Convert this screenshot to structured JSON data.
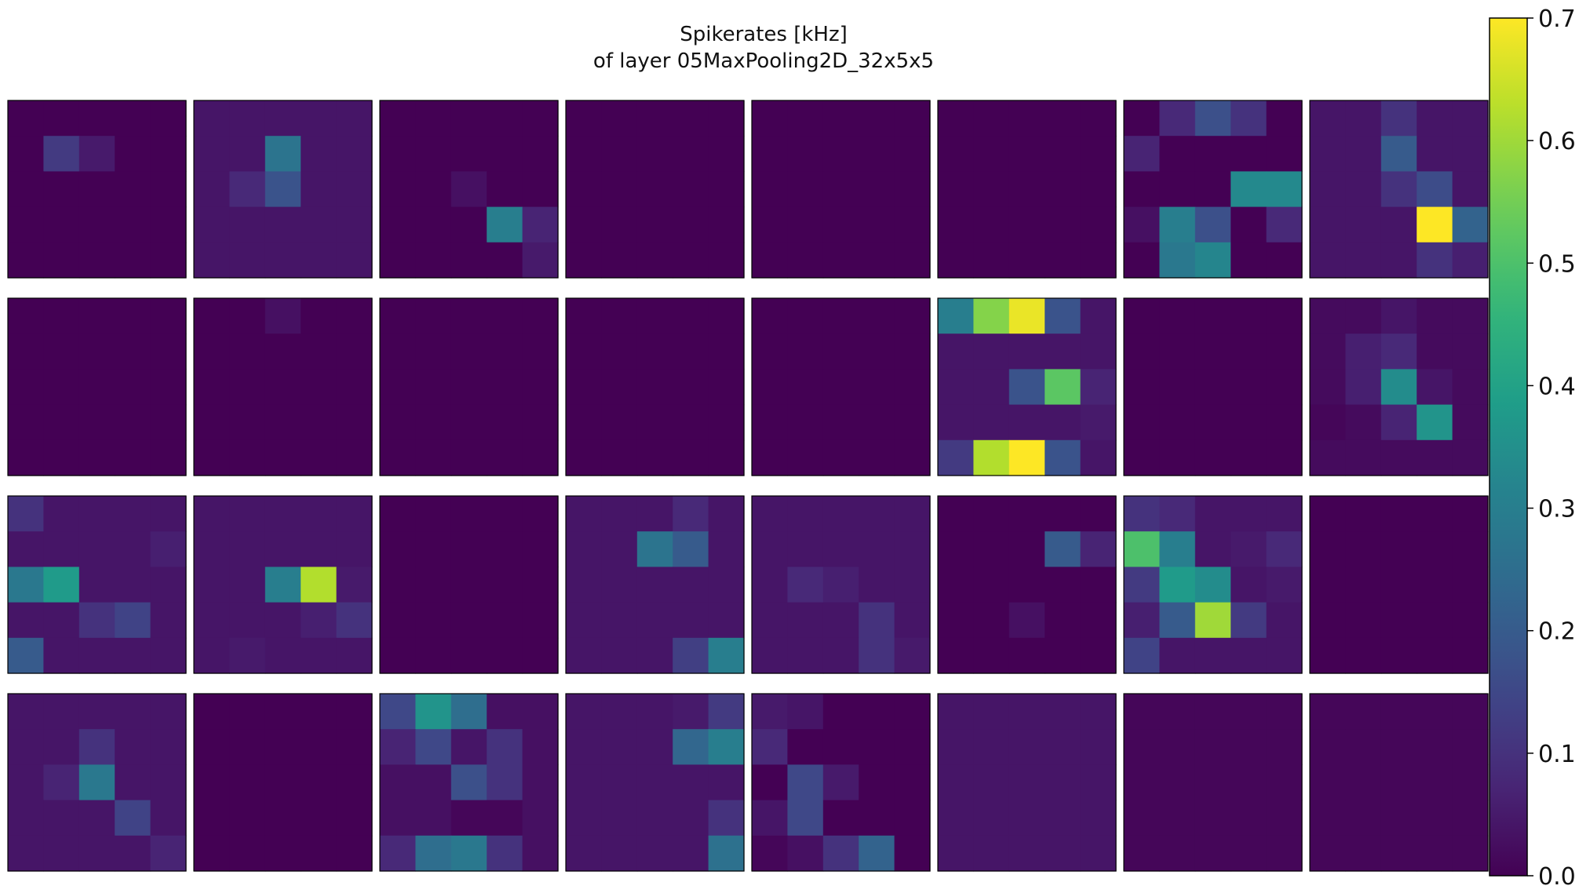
{
  "chart_data": {
    "type": "heatmap",
    "title": [
      "Spikerates [kHz]",
      "of layer 05MaxPooling2D_32x5x5"
    ],
    "grid": false,
    "colormap": "viridis",
    "panels": [
      {
        "values": [
          [
            0,
            0,
            0,
            0,
            0
          ],
          [
            0,
            0.12,
            0.05,
            0,
            0
          ],
          [
            0,
            0,
            0,
            0,
            0
          ],
          [
            0,
            0,
            0,
            0,
            0
          ],
          [
            0,
            0,
            0,
            0,
            0
          ]
        ]
      },
      {
        "values": [
          [
            0.04,
            0.04,
            0.04,
            0.04,
            0.04
          ],
          [
            0.04,
            0.04,
            0.27,
            0.04,
            0.04
          ],
          [
            0.04,
            0.08,
            0.18,
            0.04,
            0.04
          ],
          [
            0.04,
            0.04,
            0.04,
            0.04,
            0.04
          ],
          [
            0.04,
            0.04,
            0.04,
            0.04,
            0.04
          ]
        ]
      },
      {
        "values": [
          [
            0,
            0,
            0,
            0,
            0
          ],
          [
            0,
            0,
            0,
            0,
            0
          ],
          [
            0,
            0,
            0.03,
            0,
            0
          ],
          [
            0,
            0,
            0,
            0.3,
            0.07
          ],
          [
            0,
            0,
            0,
            0,
            0.05
          ]
        ]
      },
      {
        "values": [
          [
            0,
            0,
            0,
            0,
            0
          ],
          [
            0,
            0,
            0,
            0,
            0
          ],
          [
            0,
            0,
            0,
            0,
            0
          ],
          [
            0,
            0,
            0,
            0,
            0
          ],
          [
            0,
            0,
            0,
            0,
            0
          ]
        ]
      },
      {
        "values": [
          [
            0,
            0,
            0,
            0,
            0
          ],
          [
            0,
            0,
            0,
            0,
            0
          ],
          [
            0,
            0,
            0,
            0,
            0
          ],
          [
            0,
            0,
            0,
            0,
            0
          ],
          [
            0,
            0,
            0,
            0,
            0
          ]
        ]
      },
      {
        "values": [
          [
            0,
            0,
            0,
            0,
            0
          ],
          [
            0,
            0,
            0,
            0,
            0
          ],
          [
            0,
            0,
            0,
            0,
            0
          ],
          [
            0,
            0,
            0,
            0,
            0
          ],
          [
            0,
            0,
            0,
            0,
            0
          ]
        ]
      },
      {
        "values": [
          [
            0,
            0.08,
            0.17,
            0.1,
            0
          ],
          [
            0.07,
            0,
            0,
            0,
            0
          ],
          [
            0,
            0,
            0,
            0.33,
            0.33
          ],
          [
            0.03,
            0.3,
            0.17,
            0,
            0.08
          ],
          [
            0,
            0.28,
            0.32,
            0,
            0
          ]
        ]
      },
      {
        "values": [
          [
            0.04,
            0.04,
            0.1,
            0.04,
            0.04
          ],
          [
            0.04,
            0.04,
            0.2,
            0.04,
            0.04
          ],
          [
            0.04,
            0.04,
            0.1,
            0.16,
            0.04
          ],
          [
            0.04,
            0.04,
            0.04,
            0.7,
            0.22
          ],
          [
            0.04,
            0.04,
            0.04,
            0.1,
            0.06
          ]
        ]
      },
      {
        "values": [
          [
            0,
            0,
            0,
            0,
            0
          ],
          [
            0,
            0,
            0,
            0,
            0
          ],
          [
            0,
            0,
            0,
            0,
            0
          ],
          [
            0,
            0,
            0,
            0,
            0
          ],
          [
            0,
            0,
            0,
            0,
            0
          ]
        ]
      },
      {
        "values": [
          [
            0,
            0,
            0.03,
            0,
            0
          ],
          [
            0,
            0,
            0,
            0,
            0
          ],
          [
            0,
            0,
            0,
            0,
            0
          ],
          [
            0,
            0,
            0,
            0,
            0
          ],
          [
            0,
            0,
            0,
            0,
            0
          ]
        ]
      },
      {
        "values": [
          [
            0,
            0,
            0,
            0,
            0
          ],
          [
            0,
            0,
            0,
            0,
            0
          ],
          [
            0,
            0,
            0,
            0,
            0
          ],
          [
            0,
            0,
            0,
            0,
            0
          ],
          [
            0,
            0,
            0,
            0,
            0
          ]
        ]
      },
      {
        "values": [
          [
            0,
            0,
            0,
            0,
            0
          ],
          [
            0,
            0,
            0,
            0,
            0
          ],
          [
            0,
            0,
            0,
            0,
            0
          ],
          [
            0,
            0,
            0,
            0,
            0
          ],
          [
            0,
            0,
            0,
            0,
            0
          ]
        ]
      },
      {
        "values": [
          [
            0,
            0,
            0,
            0,
            0
          ],
          [
            0,
            0,
            0,
            0,
            0
          ],
          [
            0,
            0,
            0,
            0,
            0
          ],
          [
            0,
            0,
            0,
            0,
            0
          ],
          [
            0,
            0,
            0,
            0,
            0
          ]
        ]
      },
      {
        "values": [
          [
            0.3,
            0.57,
            0.68,
            0.18,
            0.04
          ],
          [
            0.04,
            0.04,
            0.04,
            0.04,
            0.04
          ],
          [
            0.04,
            0.04,
            0.18,
            0.52,
            0.07
          ],
          [
            0.04,
            0.04,
            0.04,
            0.04,
            0.05
          ],
          [
            0.12,
            0.62,
            0.7,
            0.18,
            0.04
          ]
        ]
      },
      {
        "values": [
          [
            0,
            0,
            0,
            0,
            0
          ],
          [
            0,
            0,
            0,
            0,
            0
          ],
          [
            0,
            0,
            0,
            0,
            0
          ],
          [
            0,
            0,
            0,
            0,
            0
          ],
          [
            0,
            0,
            0,
            0,
            0
          ]
        ]
      },
      {
        "values": [
          [
            0.02,
            0.02,
            0.04,
            0.02,
            0.02
          ],
          [
            0.02,
            0.06,
            0.08,
            0.02,
            0.02
          ],
          [
            0.02,
            0.06,
            0.34,
            0.04,
            0.02
          ],
          [
            0.01,
            0.02,
            0.07,
            0.36,
            0.02
          ],
          [
            0.02,
            0.02,
            0.02,
            0.02,
            0.02
          ]
        ]
      },
      {
        "values": [
          [
            0.1,
            0.04,
            0.04,
            0.04,
            0.04
          ],
          [
            0.04,
            0.04,
            0.04,
            0.04,
            0.06
          ],
          [
            0.28,
            0.38,
            0.04,
            0.04,
            0.04
          ],
          [
            0.04,
            0.04,
            0.1,
            0.14,
            0.04
          ],
          [
            0.2,
            0.04,
            0.04,
            0.04,
            0.04
          ]
        ]
      },
      {
        "values": [
          [
            0.04,
            0.04,
            0.04,
            0.04,
            0.04
          ],
          [
            0.04,
            0.04,
            0.04,
            0.04,
            0.04
          ],
          [
            0.04,
            0.04,
            0.3,
            0.62,
            0.05
          ],
          [
            0.04,
            0.04,
            0.04,
            0.06,
            0.1
          ],
          [
            0.04,
            0.05,
            0.04,
            0.04,
            0.04
          ]
        ]
      },
      {
        "values": [
          [
            0,
            0,
            0,
            0,
            0
          ],
          [
            0,
            0,
            0,
            0,
            0
          ],
          [
            0,
            0,
            0,
            0,
            0
          ],
          [
            0,
            0,
            0,
            0,
            0
          ],
          [
            0,
            0,
            0,
            0,
            0
          ]
        ]
      },
      {
        "values": [
          [
            0.04,
            0.04,
            0.04,
            0.08,
            0.04
          ],
          [
            0.04,
            0.04,
            0.27,
            0.2,
            0.04
          ],
          [
            0.04,
            0.04,
            0.04,
            0.04,
            0.04
          ],
          [
            0.04,
            0.04,
            0.04,
            0.04,
            0.04
          ],
          [
            0.04,
            0.04,
            0.04,
            0.13,
            0.3
          ]
        ]
      },
      {
        "values": [
          [
            0.04,
            0.04,
            0.04,
            0.04,
            0.04
          ],
          [
            0.04,
            0.04,
            0.04,
            0.04,
            0.04
          ],
          [
            0.04,
            0.08,
            0.06,
            0.04,
            0.04
          ],
          [
            0.04,
            0.04,
            0.04,
            0.1,
            0.04
          ],
          [
            0.04,
            0.04,
            0.04,
            0.1,
            0.05
          ]
        ]
      },
      {
        "values": [
          [
            0,
            0,
            0,
            0,
            0
          ],
          [
            0,
            0,
            0,
            0.2,
            0.07
          ],
          [
            0,
            0,
            0,
            0,
            0
          ],
          [
            0,
            0,
            0.03,
            0,
            0
          ],
          [
            0,
            0,
            0,
            0,
            0
          ]
        ]
      },
      {
        "values": [
          [
            0.1,
            0.08,
            0.04,
            0.04,
            0.04
          ],
          [
            0.5,
            0.3,
            0.04,
            0.05,
            0.08
          ],
          [
            0.12,
            0.38,
            0.34,
            0.04,
            0.05
          ],
          [
            0.06,
            0.2,
            0.6,
            0.12,
            0.04
          ],
          [
            0.14,
            0.04,
            0.04,
            0.04,
            0.04
          ]
        ]
      },
      {
        "values": [
          [
            0,
            0,
            0,
            0,
            0
          ],
          [
            0,
            0,
            0,
            0,
            0
          ],
          [
            0,
            0,
            0,
            0,
            0
          ],
          [
            0,
            0,
            0,
            0,
            0
          ],
          [
            0,
            0,
            0,
            0,
            0
          ]
        ]
      },
      {
        "values": [
          [
            0.04,
            0.04,
            0.04,
            0.04,
            0.04
          ],
          [
            0.04,
            0.04,
            0.1,
            0.04,
            0.04
          ],
          [
            0.04,
            0.07,
            0.28,
            0.04,
            0.04
          ],
          [
            0.04,
            0.04,
            0.04,
            0.14,
            0.04
          ],
          [
            0.04,
            0.04,
            0.04,
            0.04,
            0.07
          ]
        ]
      },
      {
        "values": [
          [
            0,
            0,
            0,
            0,
            0
          ],
          [
            0,
            0,
            0,
            0,
            0
          ],
          [
            0,
            0,
            0,
            0,
            0
          ],
          [
            0,
            0,
            0,
            0,
            0
          ],
          [
            0,
            0,
            0,
            0,
            0
          ]
        ]
      },
      {
        "values": [
          [
            0.15,
            0.36,
            0.25,
            0.03,
            0.03
          ],
          [
            0.07,
            0.15,
            0.04,
            0.1,
            0.03
          ],
          [
            0.03,
            0.03,
            0.17,
            0.1,
            0.03
          ],
          [
            0.03,
            0.03,
            0.01,
            0.01,
            0.03
          ],
          [
            0.08,
            0.25,
            0.28,
            0.1,
            0.03
          ]
        ]
      },
      {
        "values": [
          [
            0.04,
            0.04,
            0.04,
            0.05,
            0.12
          ],
          [
            0.04,
            0.04,
            0.04,
            0.23,
            0.3
          ],
          [
            0.04,
            0.04,
            0.04,
            0.04,
            0.04
          ],
          [
            0.04,
            0.04,
            0.04,
            0.04,
            0.1
          ],
          [
            0.04,
            0.04,
            0.04,
            0.04,
            0.26
          ]
        ]
      },
      {
        "values": [
          [
            0.05,
            0.04,
            0,
            0,
            0
          ],
          [
            0.08,
            0,
            0,
            0,
            0
          ],
          [
            0,
            0.15,
            0.05,
            0,
            0
          ],
          [
            0.04,
            0.15,
            0,
            0,
            0
          ],
          [
            0.01,
            0.03,
            0.1,
            0.22,
            0
          ]
        ]
      },
      {
        "values": [
          [
            0.04,
            0.04,
            0.04,
            0.04,
            0.04
          ],
          [
            0.04,
            0.04,
            0.04,
            0.04,
            0.04
          ],
          [
            0.04,
            0.04,
            0.04,
            0.04,
            0.04
          ],
          [
            0.04,
            0.04,
            0.04,
            0.04,
            0.04
          ],
          [
            0.04,
            0.04,
            0.04,
            0.04,
            0.04
          ]
        ]
      },
      {
        "values": [
          [
            0.01,
            0.01,
            0.01,
            0.01,
            0.01
          ],
          [
            0.01,
            0.01,
            0.01,
            0.01,
            0.01
          ],
          [
            0.01,
            0.01,
            0.01,
            0.01,
            0.01
          ],
          [
            0.01,
            0.01,
            0.01,
            0.01,
            0.01
          ],
          [
            0.01,
            0.01,
            0.01,
            0.01,
            0.01
          ]
        ]
      },
      {
        "values": [
          [
            0.01,
            0.01,
            0.01,
            0.01,
            0.01
          ],
          [
            0.01,
            0.01,
            0.01,
            0.01,
            0.01
          ],
          [
            0.01,
            0.01,
            0.01,
            0.01,
            0.01
          ],
          [
            0.01,
            0.01,
            0.01,
            0.01,
            0.01
          ],
          [
            0.01,
            0.01,
            0.01,
            0.01,
            0.01
          ]
        ]
      }
    ],
    "colorbar": {
      "vmin": 0.0,
      "vmax": 0.7,
      "ticks": [
        0.0,
        0.1,
        0.2,
        0.3,
        0.4,
        0.5,
        0.6,
        0.7
      ],
      "tick_labels": [
        "0.0",
        "0.1",
        "0.2",
        "0.3",
        "0.4",
        "0.5",
        "0.6",
        "0.7"
      ]
    }
  }
}
